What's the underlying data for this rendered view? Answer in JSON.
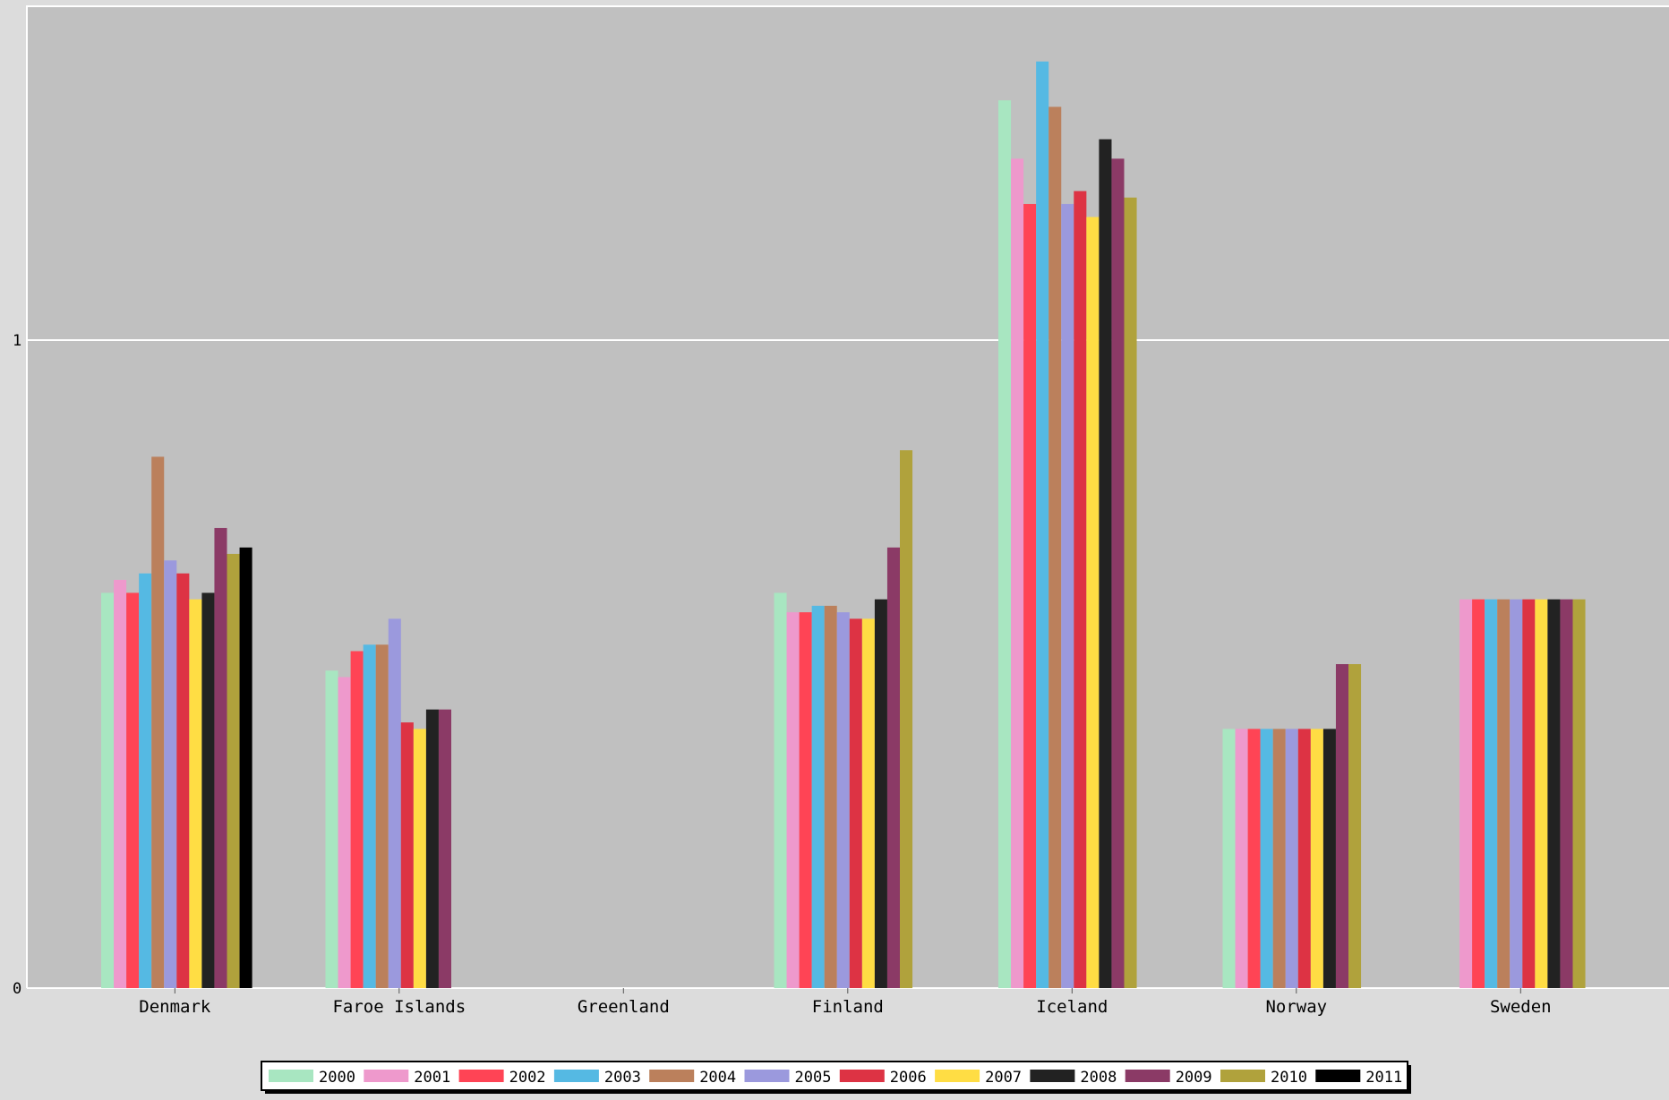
{
  "chart_data": {
    "type": "bar",
    "title": "",
    "xlabel": "",
    "ylabel": "",
    "ylim": [
      0,
      1.52
    ],
    "yticks": [
      {
        "value": 0,
        "label": "0"
      },
      {
        "value": 1,
        "label": "1"
      }
    ],
    "grid": true,
    "legend_position": "bottom",
    "colors": {
      "plot_background": "#c0c0c0",
      "page_background": "#dcdcdc",
      "gridline": "#ffffff",
      "legend_background": "#ffffff"
    },
    "categories": [
      "Denmark",
      "Faroe Islands",
      "Greenland",
      "Finland",
      "Iceland",
      "Norway",
      "Sweden"
    ],
    "series": [
      {
        "name": "2000",
        "color": "#a8e6c1",
        "values": [
          0.61,
          0.49,
          null,
          0.61,
          1.37,
          0.4,
          null
        ]
      },
      {
        "name": "2001",
        "color": "#ee99cc",
        "values": [
          0.63,
          0.48,
          null,
          0.58,
          1.28,
          0.4,
          0.6
        ]
      },
      {
        "name": "2002",
        "color": "#ff4455",
        "values": [
          0.61,
          0.52,
          null,
          0.58,
          1.21,
          0.4,
          0.6
        ]
      },
      {
        "name": "2003",
        "color": "#55b9e3",
        "values": [
          0.64,
          0.53,
          null,
          0.59,
          1.43,
          0.4,
          0.6
        ]
      },
      {
        "name": "2004",
        "color": "#bb805c",
        "values": [
          0.82,
          0.53,
          null,
          0.59,
          1.36,
          0.4,
          0.6
        ]
      },
      {
        "name": "2005",
        "color": "#9b99dd",
        "values": [
          0.66,
          0.57,
          null,
          0.58,
          1.21,
          0.4,
          0.6
        ]
      },
      {
        "name": "2006",
        "color": "#dd3344",
        "values": [
          0.64,
          0.41,
          null,
          0.57,
          1.23,
          0.4,
          0.6
        ]
      },
      {
        "name": "2007",
        "color": "#ffdd44",
        "values": [
          0.6,
          0.4,
          null,
          0.57,
          1.19,
          0.4,
          0.6
        ]
      },
      {
        "name": "2008",
        "color": "#222222",
        "values": [
          0.61,
          0.43,
          null,
          0.6,
          1.31,
          0.4,
          0.6
        ]
      },
      {
        "name": "2009",
        "color": "#8b3a66",
        "values": [
          0.71,
          0.43,
          null,
          0.68,
          1.28,
          0.5,
          0.6
        ]
      },
      {
        "name": "2010",
        "color": "#b0a23c",
        "values": [
          0.67,
          null,
          null,
          0.83,
          1.22,
          0.5,
          0.6
        ]
      },
      {
        "name": "2011",
        "color": "#000000",
        "values": [
          0.68,
          null,
          null,
          null,
          null,
          null,
          null
        ]
      }
    ]
  }
}
